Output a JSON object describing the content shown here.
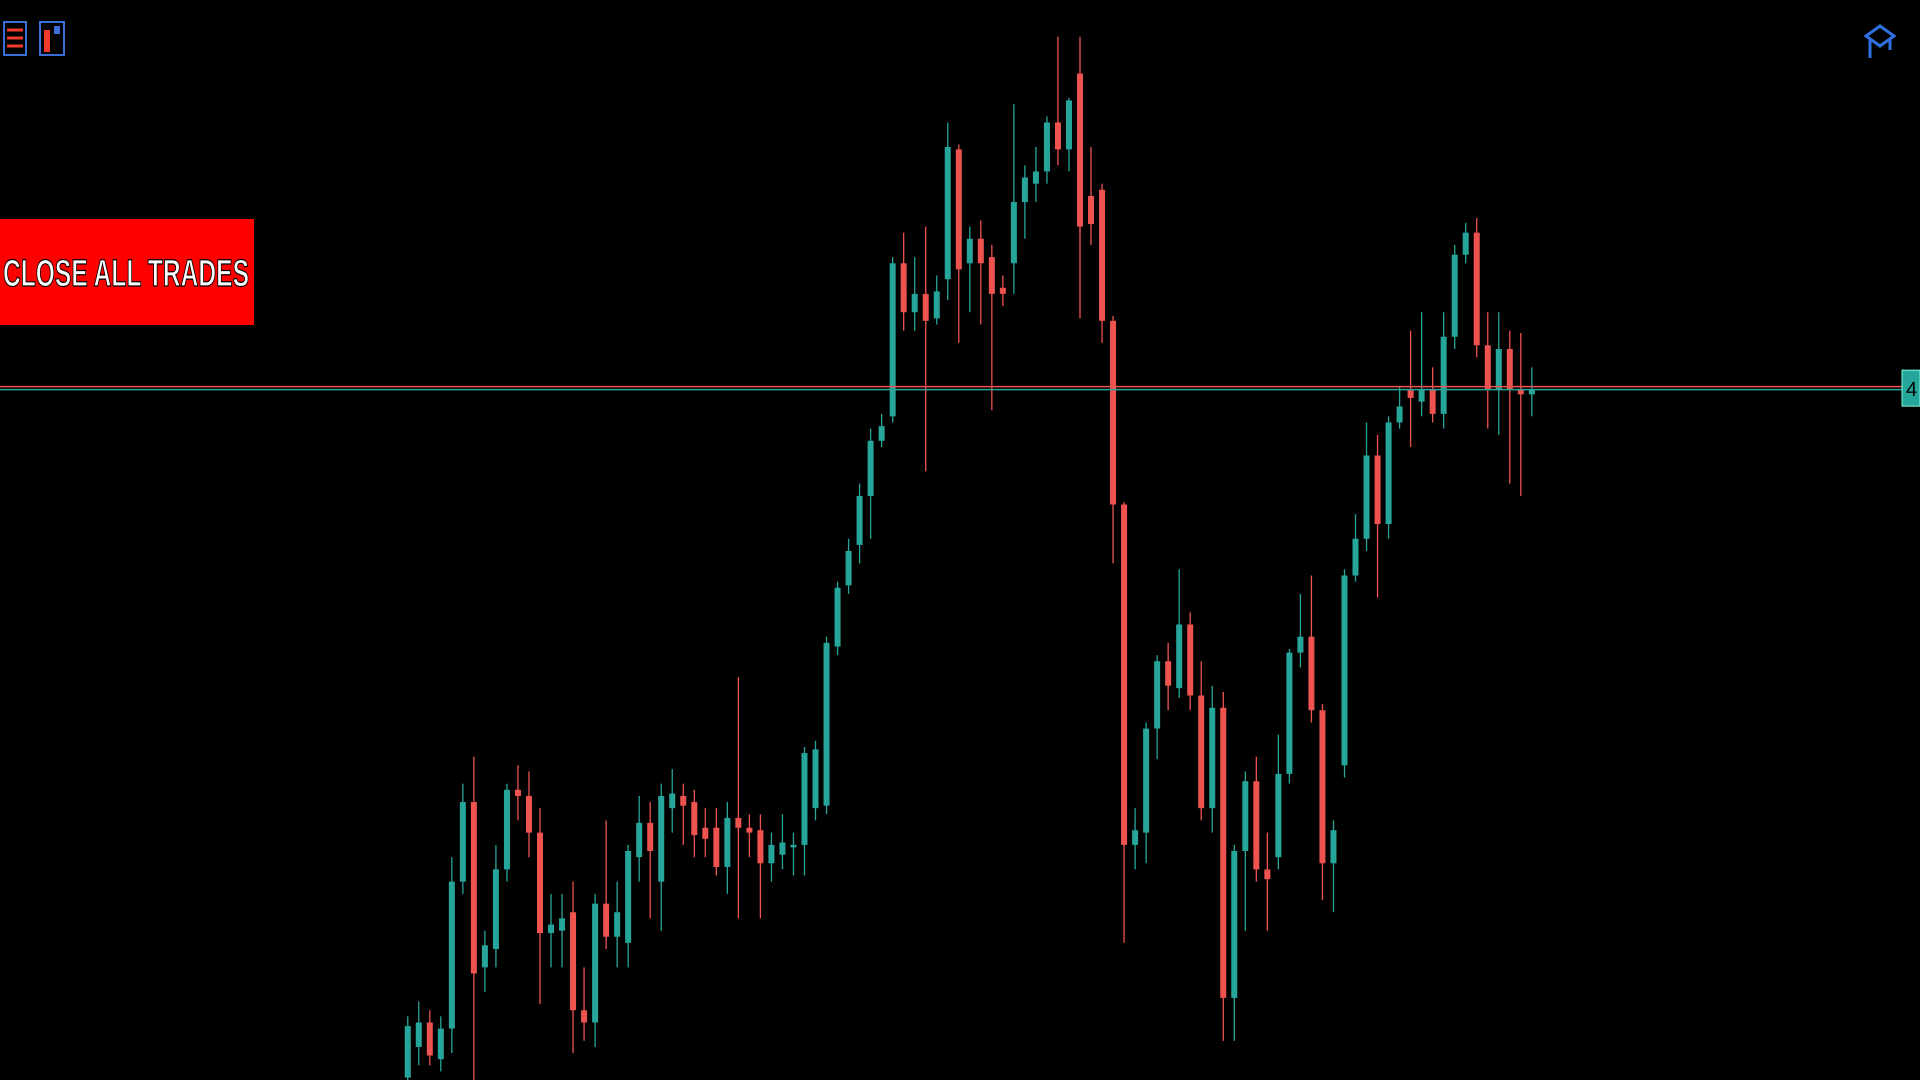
{
  "chart_data": {
    "type": "candlestick",
    "ylim": [
      0,
      882
    ],
    "up_color": "#26a69a",
    "down_color": "#ef5350",
    "level": 565,
    "level_colors": [
      "#ef5350",
      "#26a69a"
    ],
    "price_label": "4",
    "ohlc": [
      [
        2,
        52,
        0,
        44
      ],
      [
        27,
        64,
        12,
        47
      ],
      [
        47,
        57,
        12,
        20
      ],
      [
        17,
        52,
        7,
        42
      ],
      [
        42,
        182,
        22,
        162
      ],
      [
        162,
        242,
        152,
        227
      ],
      [
        227,
        264,
        0,
        87
      ],
      [
        92,
        122,
        72,
        110
      ],
      [
        107,
        192,
        92,
        172
      ],
      [
        172,
        242,
        162,
        237
      ],
      [
        237,
        257,
        212,
        232
      ],
      [
        232,
        252,
        182,
        202
      ],
      [
        202,
        222,
        62,
        120
      ],
      [
        120,
        152,
        92,
        127
      ],
      [
        122,
        152,
        92,
        132
      ],
      [
        137,
        162,
        22,
        57
      ],
      [
        57,
        92,
        32,
        47
      ],
      [
        47,
        152,
        27,
        144
      ],
      [
        144,
        212,
        107,
        117
      ],
      [
        117,
        162,
        92,
        137
      ],
      [
        112,
        192,
        92,
        187
      ],
      [
        182,
        232,
        162,
        210
      ],
      [
        210,
        227,
        132,
        187
      ],
      [
        162,
        242,
        122,
        232
      ],
      [
        222,
        254,
        202,
        234
      ],
      [
        232,
        242,
        192,
        224
      ],
      [
        227,
        237,
        182,
        200
      ],
      [
        206,
        222,
        182,
        197
      ],
      [
        206,
        222,
        167,
        174
      ],
      [
        174,
        227,
        152,
        214
      ],
      [
        214,
        329,
        132,
        206
      ],
      [
        206,
        217,
        182,
        202
      ],
      [
        204,
        217,
        132,
        177
      ],
      [
        177,
        202,
        162,
        192
      ],
      [
        184,
        217,
        172,
        194
      ],
      [
        190,
        202,
        167,
        192
      ],
      [
        192,
        272,
        167,
        267
      ],
      [
        222,
        277,
        212,
        270
      ],
      [
        224,
        362,
        217,
        357
      ],
      [
        354,
        407,
        347,
        402
      ],
      [
        404,
        442,
        397,
        432
      ],
      [
        437,
        487,
        422,
        477
      ],
      [
        477,
        532,
        442,
        522
      ],
      [
        522,
        544,
        517,
        534
      ],
      [
        542,
        672,
        537,
        667
      ],
      [
        667,
        692,
        612,
        627
      ],
      [
        627,
        672,
        612,
        642
      ],
      [
        642,
        697,
        497,
        620
      ],
      [
        622,
        657,
        617,
        644
      ],
      [
        654,
        782,
        637,
        762
      ],
      [
        760,
        764,
        602,
        662
      ],
      [
        667,
        697,
        627,
        687
      ],
      [
        687,
        702,
        617,
        667
      ],
      [
        672,
        682,
        547,
        642
      ],
      [
        647,
        657,
        632,
        642
      ],
      [
        667,
        797,
        642,
        717
      ],
      [
        717,
        747,
        687,
        737
      ],
      [
        732,
        762,
        717,
        742
      ],
      [
        742,
        787,
        732,
        782
      ],
      [
        782,
        852,
        747,
        760
      ],
      [
        760,
        802,
        742,
        800
      ],
      [
        822,
        852,
        622,
        697
      ],
      [
        722,
        762,
        682,
        699
      ],
      [
        727,
        732,
        602,
        620
      ],
      [
        620,
        624,
        422,
        470
      ],
      [
        470,
        472,
        112,
        192
      ],
      [
        192,
        222,
        172,
        204
      ],
      [
        202,
        292,
        177,
        287
      ],
      [
        287,
        347,
        262,
        342
      ],
      [
        342,
        357,
        302,
        322
      ],
      [
        320,
        417,
        312,
        372
      ],
      [
        372,
        382,
        302,
        314
      ],
      [
        314,
        342,
        212,
        222
      ],
      [
        222,
        322,
        202,
        304
      ],
      [
        304,
        317,
        32,
        67
      ],
      [
        67,
        192,
        32,
        187
      ],
      [
        187,
        252,
        122,
        244
      ],
      [
        244,
        264,
        162,
        172
      ],
      [
        172,
        202,
        122,
        164
      ],
      [
        182,
        282,
        172,
        250
      ],
      [
        250,
        352,
        242,
        349
      ],
      [
        349,
        397,
        337,
        362
      ],
      [
        362,
        412,
        292,
        302
      ],
      [
        302,
        307,
        147,
        177
      ],
      [
        177,
        212,
        137,
        204
      ],
      [
        257,
        417,
        247,
        412
      ],
      [
        412,
        462,
        407,
        442
      ],
      [
        442,
        537,
        432,
        510
      ],
      [
        510,
        527,
        394,
        454
      ],
      [
        454,
        542,
        442,
        537
      ],
      [
        537,
        567,
        532,
        550
      ],
      [
        564,
        612,
        517,
        557
      ],
      [
        554,
        627,
        542,
        564
      ],
      [
        564,
        582,
        537,
        544
      ],
      [
        544,
        627,
        532,
        607
      ],
      [
        607,
        682,
        597,
        674
      ],
      [
        674,
        700,
        667,
        692
      ],
      [
        692,
        704,
        590,
        600
      ],
      [
        600,
        627,
        532,
        564
      ],
      [
        564,
        627,
        527,
        597
      ],
      [
        597,
        612,
        487,
        564
      ],
      [
        564,
        610,
        477,
        560
      ],
      [
        560,
        582,
        542,
        564
      ]
    ]
  },
  "button": {
    "label": "CLOSE ALL TRADES"
  }
}
